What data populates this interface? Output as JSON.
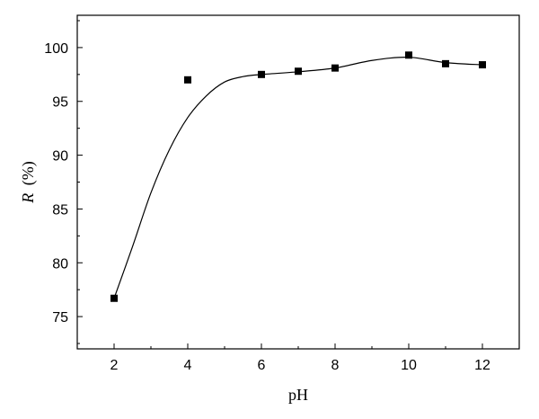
{
  "chart_data": {
    "type": "scatter",
    "title": "",
    "xlabel": "pH",
    "ylabel": {
      "symbol": "R",
      "unit": "(%)"
    },
    "xlim": [
      1,
      13
    ],
    "ylim": [
      72,
      103
    ],
    "xticks": [
      2,
      4,
      6,
      8,
      10,
      12
    ],
    "yticks": [
      75,
      80,
      85,
      90,
      95,
      100
    ],
    "grid": false,
    "legend": "none",
    "series": [
      {
        "marker": "square",
        "color": "#000000",
        "points": [
          {
            "x": 2,
            "y": 76.7
          },
          {
            "x": 4,
            "y": 97.0
          },
          {
            "x": 6,
            "y": 97.5
          },
          {
            "x": 7,
            "y": 97.8
          },
          {
            "x": 8,
            "y": 98.1
          },
          {
            "x": 10,
            "y": 99.3
          },
          {
            "x": 11,
            "y": 98.5
          },
          {
            "x": 12,
            "y": 98.4
          }
        ]
      }
    ],
    "fit_curve": {
      "color": "#000000",
      "points": [
        {
          "x": 2.0,
          "y": 76.7
        },
        {
          "x": 2.5,
          "y": 81.5
        },
        {
          "x": 3.0,
          "y": 86.5
        },
        {
          "x": 3.5,
          "y": 90.5
        },
        {
          "x": 4.0,
          "y": 93.5
        },
        {
          "x": 4.5,
          "y": 95.5
        },
        {
          "x": 5.0,
          "y": 96.8
        },
        {
          "x": 5.5,
          "y": 97.3
        },
        {
          "x": 6.0,
          "y": 97.5
        },
        {
          "x": 7.0,
          "y": 97.75
        },
        {
          "x": 8.0,
          "y": 98.1
        },
        {
          "x": 9.0,
          "y": 98.8
        },
        {
          "x": 10.0,
          "y": 99.1
        },
        {
          "x": 11.0,
          "y": 98.6
        },
        {
          "x": 12.0,
          "y": 98.4
        }
      ]
    }
  }
}
